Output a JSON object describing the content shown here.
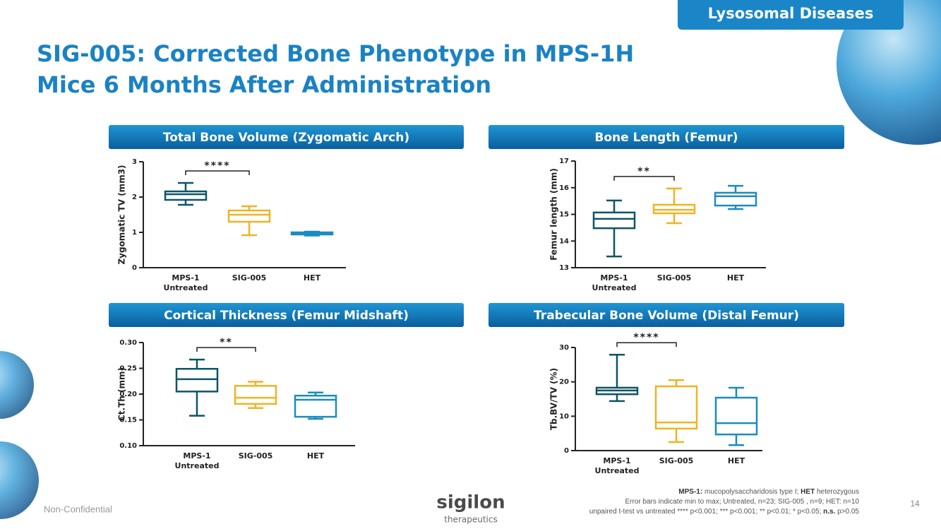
{
  "tag": "Lysosomal Diseases",
  "title": [
    "SIG-005: Corrected Bone Phenotype in MPS-1H",
    "Mice 6 Months After Administration"
  ],
  "chart_data": [
    {
      "type": "box",
      "title": "Total Bone Volume (Zygomatic Arch)",
      "ylabel": "Zygomatic TV (mm3)",
      "categories": [
        "MPS-1\nUntreated",
        "SIG-005",
        "HET"
      ],
      "colors": [
        "#0d5566",
        "#f0b323",
        "#1a8cc0"
      ],
      "boxes": [
        {
          "min": 1.78,
          "q1": 1.92,
          "median": 2.08,
          "q3": 2.16,
          "max": 2.4
        },
        {
          "min": 0.92,
          "q1": 1.3,
          "median": 1.5,
          "q3": 1.62,
          "max": 1.74
        },
        {
          "min": 0.91,
          "q1": 0.94,
          "median": 0.97,
          "q3": 1.0,
          "max": 1.02
        }
      ],
      "ylim": [
        0,
        3
      ],
      "yticks": [
        0,
        1,
        2,
        3
      ],
      "significance": "****"
    },
    {
      "type": "box",
      "title": "Bone Length (Femur)",
      "ylabel": "Femur length (mm)",
      "categories": [
        "MPS-1\nUntreated",
        "SIG-005",
        "HET"
      ],
      "colors": [
        "#0d5566",
        "#f0b323",
        "#1a8cc0"
      ],
      "boxes": [
        {
          "min": 13.42,
          "q1": 14.48,
          "median": 14.83,
          "q3": 15.07,
          "max": 15.52
        },
        {
          "min": 14.67,
          "q1": 15.04,
          "median": 15.17,
          "q3": 15.36,
          "max": 15.97
        },
        {
          "min": 15.2,
          "q1": 15.33,
          "median": 15.68,
          "q3": 15.81,
          "max": 16.07
        }
      ],
      "ylim": [
        13,
        17
      ],
      "yticks": [
        13,
        14,
        15,
        16,
        17
      ],
      "significance": "**"
    },
    {
      "type": "box",
      "title": "Cortical Thickness (Femur Midshaft)",
      "ylabel": "Ct.Th (mm)",
      "categories": [
        "MPS-1\nUntreated",
        "SIG-005",
        "HET"
      ],
      "colors": [
        "#0d5566",
        "#f0b323",
        "#1a8cc0"
      ],
      "boxes": [
        {
          "min": 0.158,
          "q1": 0.205,
          "median": 0.229,
          "q3": 0.249,
          "max": 0.267
        },
        {
          "min": 0.173,
          "q1": 0.181,
          "median": 0.193,
          "q3": 0.216,
          "max": 0.224
        },
        {
          "min": 0.152,
          "q1": 0.156,
          "median": 0.189,
          "q3": 0.197,
          "max": 0.203
        }
      ],
      "ylim": [
        0.1,
        0.3
      ],
      "yticks": [
        {
          "value": 0.1,
          "label": "0.10"
        },
        {
          "value": 0.15,
          "label": "0.15"
        },
        {
          "value": 0.2,
          "label": "0.20"
        },
        {
          "value": 0.25,
          "label": "0.25"
        },
        {
          "value": 0.3,
          "label": "0.30"
        }
      ],
      "significance": "**"
    },
    {
      "type": "box",
      "title": "Trabecular Bone Volume (Distal Femur)",
      "ylabel": "Tb.BV/TV (%)",
      "categories": [
        "MPS-1\nUntreated",
        "SIG-005",
        "HET"
      ],
      "colors": [
        "#0d5566",
        "#f0b323",
        "#1a8cc0"
      ],
      "boxes": [
        {
          "min": 14.4,
          "q1": 16.4,
          "median": 17.5,
          "q3": 18.3,
          "max": 27.9
        },
        {
          "min": 2.5,
          "q1": 6.4,
          "median": 8.2,
          "q3": 18.7,
          "max": 20.5
        },
        {
          "min": 1.6,
          "q1": 4.7,
          "median": 8.0,
          "q3": 15.4,
          "max": 18.3
        }
      ],
      "ylim": [
        0,
        30
      ],
      "yticks": [
        0,
        10,
        20,
        30
      ],
      "significance": "****"
    }
  ],
  "footnote": [
    [
      "MPS-1:",
      "mucopolysaccharidosis type I;",
      "HET",
      "heterozygous"
    ],
    [
      "Error bars indicate min to max; Untreated, n=23; SIG-005 , n=9; HET: n=10"
    ],
    [
      "unpaired t-test vs untreated **** p<0.001; *** p<0.001; ** p<0.01; * p<0.05;",
      "n.s.",
      "p>0.05"
    ]
  ],
  "footer": {
    "confidentiality": "Non-Confidential",
    "logo": "sigilon",
    "logo_sub": "therapeutics",
    "page": 14
  }
}
